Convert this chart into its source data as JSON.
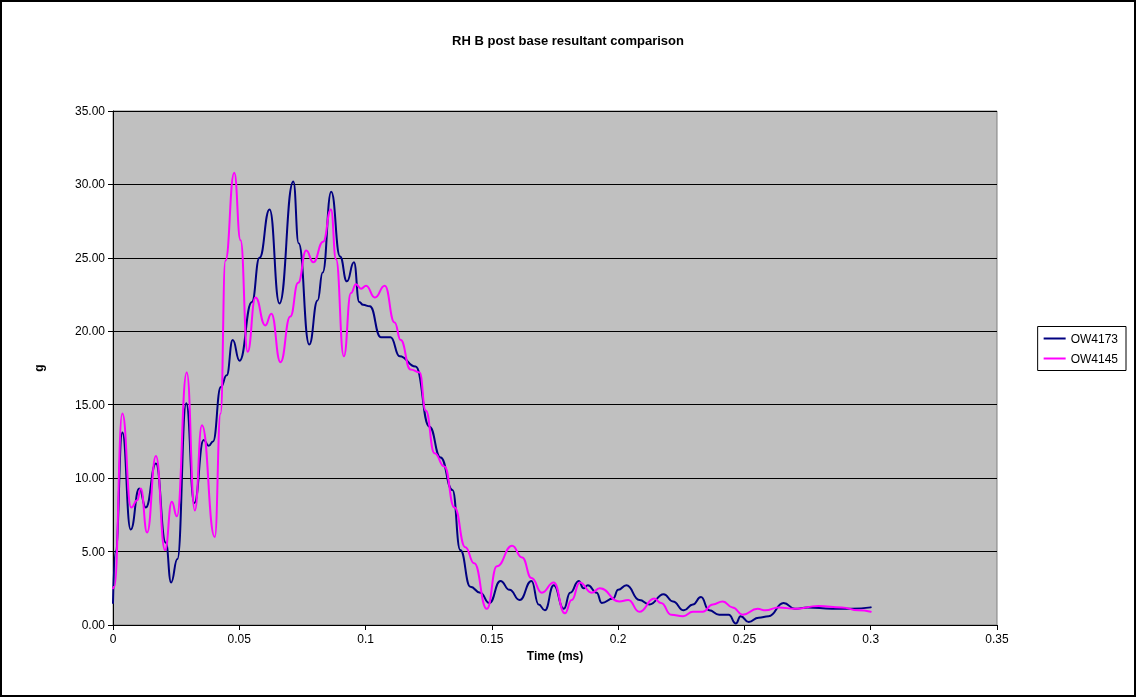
{
  "chart_data": {
    "type": "line",
    "title": "RH B post base resultant comparison",
    "xlabel": "Time (ms)",
    "ylabel": "g",
    "xlim": [
      0,
      0.35
    ],
    "xticks": [
      0,
      0.05,
      0.1,
      0.15,
      0.2,
      0.25,
      0.3,
      0.35
    ],
    "ylim": [
      0,
      35
    ],
    "yticks": [
      {
        "value": 0,
        "label": "0.00"
      },
      {
        "value": 5,
        "label": "5.00"
      },
      {
        "value": 10,
        "label": "10.00"
      },
      {
        "value": 15,
        "label": "15.00"
      },
      {
        "value": 20,
        "label": "20.00"
      },
      {
        "value": 25,
        "label": "25.00"
      },
      {
        "value": 30,
        "label": "30.00"
      },
      {
        "value": 35,
        "label": "35.00"
      }
    ],
    "grid": "y",
    "legend": "right",
    "marker": "none",
    "line_style": "solid",
    "series": [
      {
        "name": "OW4173",
        "color": "#000080",
        "x": [
          0,
          0.001,
          0.0037,
          0.007,
          0.0104,
          0.013,
          0.017,
          0.0209,
          0.023,
          0.0255,
          0.029,
          0.0322,
          0.0359,
          0.0379,
          0.0396,
          0.0427,
          0.045,
          0.0474,
          0.0501,
          0.055,
          0.058,
          0.062,
          0.0659,
          0.0714,
          0.0735,
          0.0777,
          0.081,
          0.083,
          0.0864,
          0.0899,
          0.0926,
          0.0954,
          0.0975,
          0.099,
          0.1017,
          0.106,
          0.1099,
          0.1135,
          0.1198,
          0.1253,
          0.1297,
          0.1344,
          0.1375,
          0.1415,
          0.1454,
          0.149,
          0.1534,
          0.157,
          0.161,
          0.1657,
          0.1685,
          0.171,
          0.1745,
          0.1785,
          0.181,
          0.1844,
          0.1863,
          0.188,
          0.1915,
          0.1935,
          0.198,
          0.2,
          0.2033,
          0.2084,
          0.2124,
          0.218,
          0.2217,
          0.226,
          0.2296,
          0.2328,
          0.236,
          0.24,
          0.2438,
          0.2466,
          0.2485,
          0.2517,
          0.2556,
          0.2596,
          0.2655,
          0.27,
          0.275,
          0.2847,
          0.2925,
          0.3
        ],
        "values": [
          1.5,
          5,
          13.1,
          6.5,
          9.3,
          8,
          11,
          5.6,
          2.9,
          4.5,
          15.1,
          8.3,
          12.6,
          12.2,
          12.5,
          16.2,
          17,
          19.4,
          18,
          22,
          25,
          28.3,
          21.9,
          30.2,
          26,
          19.1,
          22.1,
          24,
          29.5,
          25.1,
          23.4,
          24.7,
          22,
          21.8,
          21.7,
          19.6,
          19.6,
          18.3,
          17.6,
          13.5,
          11.4,
          9.2,
          5.1,
          2.6,
          2.2,
          1.5,
          3,
          2.4,
          1.7,
          3,
          1.4,
          1,
          2.7,
          1.1,
          2.2,
          3,
          2.5,
          2.7,
          2.2,
          1.5,
          1.8,
          2.4,
          2.7,
          1.7,
          1.4,
          2.1,
          1.6,
          1,
          1.4,
          1.9,
          1,
          0.7,
          0.7,
          0.1,
          0.6,
          0.2,
          0.5,
          0.6,
          1.5,
          1.1,
          1.2,
          1.1,
          1.1,
          1.2
        ]
      },
      {
        "name": "OW4145",
        "color": "#ff00ff",
        "x": [
          0,
          0.0005,
          0.0037,
          0.0072,
          0.0096,
          0.011,
          0.0135,
          0.017,
          0.0206,
          0.0233,
          0.0253,
          0.0292,
          0.0324,
          0.0352,
          0.0403,
          0.0426,
          0.0445,
          0.048,
          0.0505,
          0.0533,
          0.0564,
          0.0603,
          0.0627,
          0.0663,
          0.0702,
          0.0733,
          0.0765,
          0.0793,
          0.0832,
          0.0863,
          0.0883,
          0.0914,
          0.0942,
          0.0962,
          0.0982,
          0.1002,
          0.1037,
          0.1076,
          0.1115,
          0.1139,
          0.1178,
          0.1214,
          0.1238,
          0.1273,
          0.1312,
          0.1352,
          0.1395,
          0.143,
          0.148,
          0.152,
          0.158,
          0.162,
          0.1657,
          0.1698,
          0.1745,
          0.1789,
          0.1816,
          0.1848,
          0.1895,
          0.1927,
          0.2005,
          0.204,
          0.2084,
          0.2143,
          0.217,
          0.221,
          0.2257,
          0.2296,
          0.2335,
          0.2375,
          0.2414,
          0.2453,
          0.2493,
          0.2552,
          0.2583,
          0.2635,
          0.27,
          0.2793,
          0.2886,
          0.295,
          0.3
        ],
        "values": [
          2.5,
          2.6,
          14.4,
          8,
          8.5,
          9.3,
          6.3,
          11.5,
          5.1,
          8.4,
          7.4,
          17.2,
          7.8,
          13.6,
          6,
          14.4,
          24.8,
          30.8,
          26.2,
          18.6,
          22.3,
          20.4,
          21.2,
          17.9,
          21,
          23.3,
          25.5,
          24.7,
          26.1,
          28.3,
          24.9,
          18.3,
          22.6,
          23.2,
          22.9,
          23.1,
          22.3,
          23.1,
          20.6,
          19.4,
          17.4,
          17.2,
          14.6,
          11.7,
          10.8,
          8,
          5.3,
          4.2,
          1.1,
          4,
          5.4,
          4.6,
          3.2,
          2.2,
          2.9,
          0.8,
          1.7,
          2.9,
          2.2,
          2.5,
          1.6,
          1.7,
          0.9,
          1.8,
          1.5,
          0.7,
          0.6,
          0.9,
          0.9,
          1.4,
          1.6,
          1.2,
          0.7,
          1.1,
          1,
          1.2,
          1.1,
          1.3,
          1.2,
          1,
          0.9
        ]
      }
    ]
  }
}
